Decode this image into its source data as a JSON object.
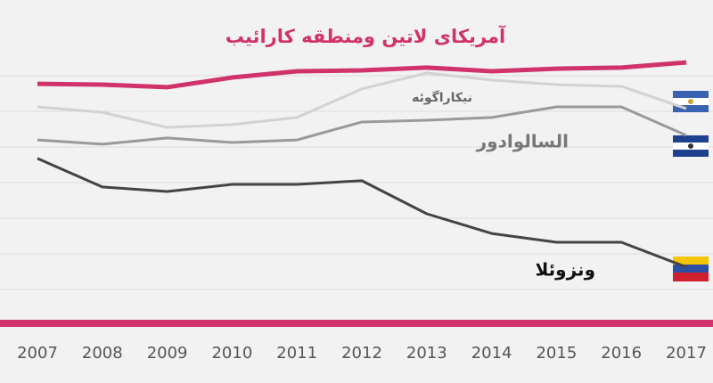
{
  "chart_data": {
    "type": "line",
    "title": "آمریکای لاتین ومنطقه کارائیب",
    "x": [
      "2007",
      "2008",
      "2009",
      "2010",
      "2011",
      "2012",
      "2013",
      "2014",
      "2015",
      "2016",
      "2017"
    ],
    "ylim": [
      0,
      100
    ],
    "series": [
      {
        "name": "آمریکای لاتین ومنطقه کارائیب",
        "color": "#d0336b",
        "values": [
          83.1,
          82.8,
          81.9,
          85.3,
          87.5,
          87.8,
          88.8,
          87.5,
          88.4,
          88.8,
          90.6
        ]
      },
      {
        "name": "نیکاراگوئه",
        "color": "#d2d2d2",
        "values": [
          75,
          73.1,
          67.8,
          68.8,
          71.3,
          81.3,
          86.9,
          84.4,
          82.8,
          82.2,
          74.4
        ]
      },
      {
        "name": "السالوادور",
        "color": "#9a9a9a",
        "values": [
          63.4,
          61.9,
          64.1,
          62.5,
          63.4,
          69.7,
          70.3,
          71.3,
          75,
          75,
          65
        ]
      },
      {
        "name": "ونزوئلا",
        "color": "#444444",
        "values": [
          56.9,
          46.9,
          45.3,
          47.8,
          47.8,
          49.1,
          37.5,
          30.6,
          27.5,
          27.5,
          18.8
        ]
      }
    ]
  }
}
